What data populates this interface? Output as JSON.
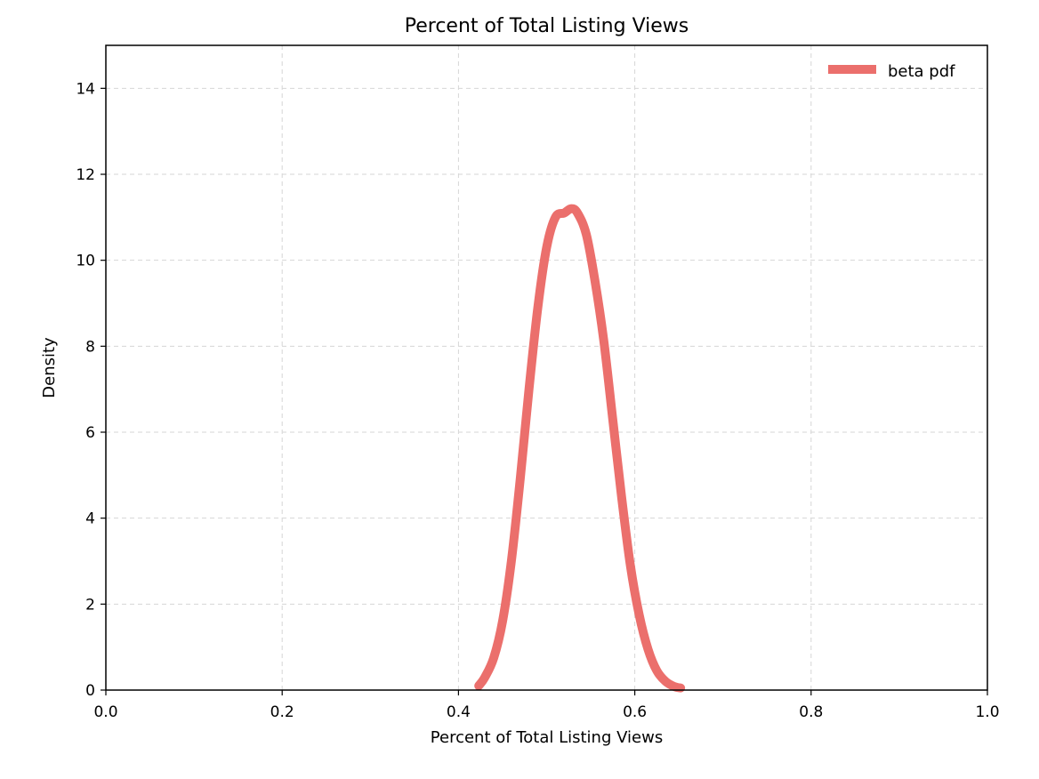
{
  "chart_data": {
    "type": "line",
    "title": "Percent of Total Listing Views",
    "xlabel": "Percent of Total Listing Views",
    "ylabel": "Density",
    "xlim": [
      0.0,
      1.0
    ],
    "ylim": [
      0,
      15
    ],
    "x_ticks": [
      "0.0",
      "0.2",
      "0.4",
      "0.6",
      "0.8",
      "1.0"
    ],
    "x_tick_values": [
      0.0,
      0.2,
      0.4,
      0.6,
      0.8,
      1.0
    ],
    "y_ticks": [
      "0",
      "2",
      "4",
      "6",
      "8",
      "10",
      "12",
      "14"
    ],
    "y_tick_values": [
      0,
      2,
      4,
      6,
      8,
      10,
      12,
      14
    ],
    "grid": true,
    "legend_position": "top-right",
    "series": [
      {
        "name": "beta pdf",
        "color": "#eb6f6c",
        "x": [
          0.423,
          0.43,
          0.44,
          0.45,
          0.46,
          0.47,
          0.48,
          0.49,
          0.5,
          0.51,
          0.52,
          0.528,
          0.535,
          0.545,
          0.555,
          0.565,
          0.575,
          0.585,
          0.595,
          0.605,
          0.615,
          0.625,
          0.635,
          0.645,
          0.652
        ],
        "y": [
          0.1,
          0.3,
          0.75,
          1.6,
          3.0,
          4.9,
          7.0,
          8.9,
          10.3,
          11.0,
          11.1,
          11.2,
          11.1,
          10.6,
          9.5,
          8.1,
          6.3,
          4.5,
          2.9,
          1.75,
          0.95,
          0.45,
          0.2,
          0.08,
          0.05
        ]
      }
    ]
  }
}
